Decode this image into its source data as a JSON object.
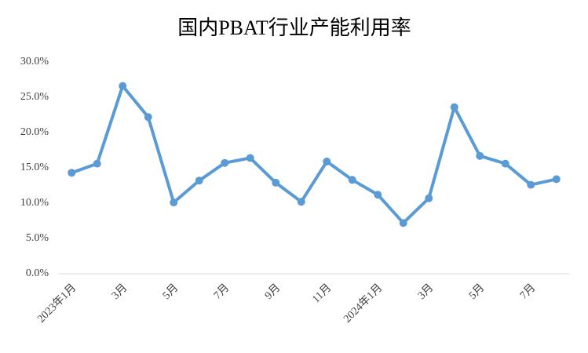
{
  "chart_data": {
    "type": "line",
    "title": "国内PBAT行业产能利用率",
    "categories": [
      "2023年1月",
      null,
      "3月",
      null,
      "5月",
      null,
      "7月",
      null,
      "9月",
      null,
      "11月",
      null,
      "2024年1月",
      null,
      "3月",
      null,
      "5月",
      null,
      "7月",
      null
    ],
    "series": [
      {
        "name": "产能利用率",
        "color": "#5b9bd5",
        "values": [
          14.3,
          15.6,
          26.6,
          22.2,
          10.1,
          13.2,
          15.7,
          16.4,
          12.9,
          10.2,
          15.9,
          13.3,
          11.2,
          7.2,
          10.7,
          23.6,
          16.7,
          15.6,
          12.6,
          13.4
        ]
      }
    ],
    "ylim": [
      0,
      30
    ],
    "yticks": [
      {
        "value": 0,
        "label": "0.0%"
      },
      {
        "value": 5,
        "label": "5.0%"
      },
      {
        "value": 10,
        "label": "10.0%"
      },
      {
        "value": 15,
        "label": "15.0%"
      },
      {
        "value": 20,
        "label": "20.0%"
      },
      {
        "value": 25,
        "label": "25.0%"
      },
      {
        "value": 30,
        "label": "30.0%"
      }
    ],
    "grid": false
  }
}
